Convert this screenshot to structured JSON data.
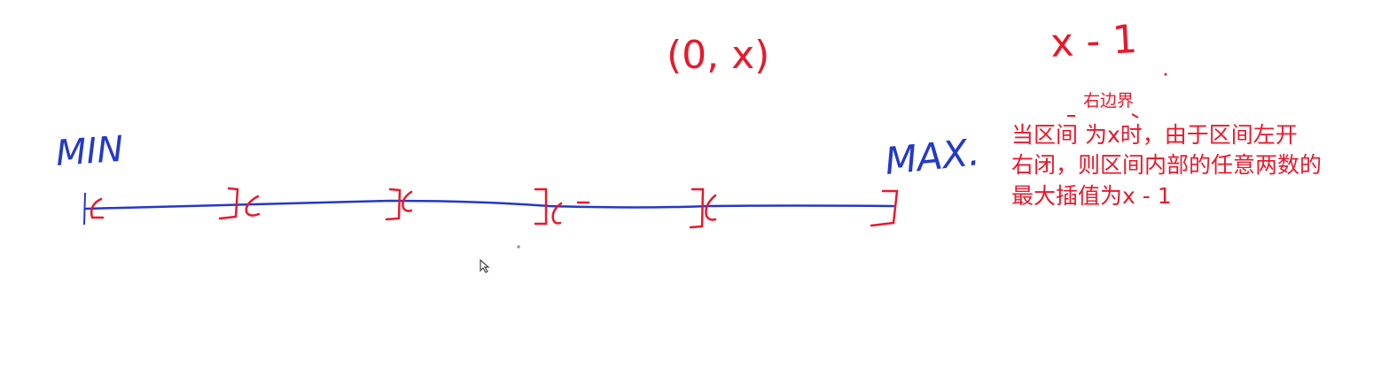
{
  "colors": {
    "blue": "#2438c8",
    "red": "#e8192c"
  },
  "labels": {
    "min": "MIN",
    "max": "MAX.",
    "interval": "(0, x)",
    "x_minus_one": "x - 1"
  },
  "annotation": {
    "small": "右边界",
    "line1": "当区间        为x时，由于区间左开",
    "line2": "右闭，则区间内部的任意两数的",
    "line3": "最大插值为x - 1"
  }
}
